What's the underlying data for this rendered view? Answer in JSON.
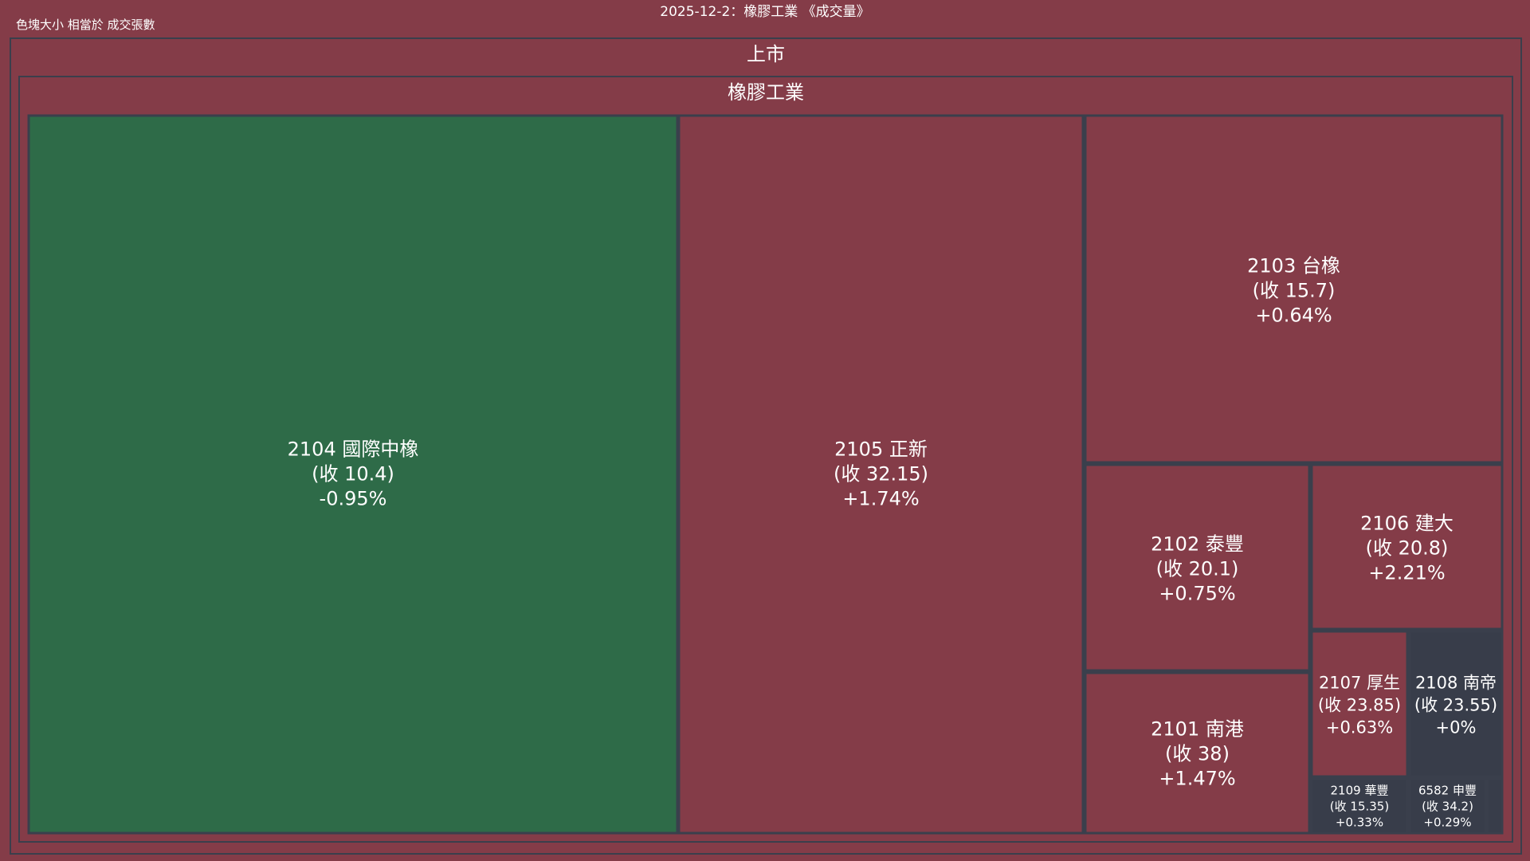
{
  "title": "2025-12-2：橡膠工業 《成交量》",
  "size_note": "色塊大小 相當於 成交張數",
  "market_label": "上市",
  "sector_label": "橡膠工業",
  "colors": {
    "background": "#843c48",
    "border": "#3a3f4c",
    "up": "#843c48",
    "down": "#2e6b48",
    "flat": "#383d4a"
  },
  "chart_data": {
    "type": "treemap",
    "title": "2025-12-2：橡膠工業 《成交量》",
    "size_measure": "成交張數",
    "hierarchy": [
      "上市",
      "橡膠工業"
    ],
    "tiles": [
      {
        "code": "2104",
        "name": "國際中橡",
        "label": "2104 國際中橡",
        "close": "(收 10.4)",
        "change": "-0.95%",
        "change_value": -0.95,
        "color": "#2e6b48"
      },
      {
        "code": "2105",
        "name": "正新",
        "label": "2105 正新",
        "close": "(收 32.15)",
        "change": "+1.74%",
        "change_value": 1.74,
        "color": "#843c48"
      },
      {
        "code": "2103",
        "name": "台橡",
        "label": "2103 台橡",
        "close": "(收 15.7)",
        "change": "+0.64%",
        "change_value": 0.64,
        "color": "#843c48"
      },
      {
        "code": "2102",
        "name": "泰豐",
        "label": "2102 泰豐",
        "close": "(收 20.1)",
        "change": "+0.75%",
        "change_value": 0.75,
        "color": "#843c48"
      },
      {
        "code": "2106",
        "name": "建大",
        "label": "2106 建大",
        "close": "(收 20.8)",
        "change": "+2.21%",
        "change_value": 2.21,
        "color": "#843c48"
      },
      {
        "code": "2101",
        "name": "南港",
        "label": "2101 南港",
        "close": "(收 38)",
        "change": "+1.47%",
        "change_value": 1.47,
        "color": "#843c48"
      },
      {
        "code": "2107",
        "name": "厚生",
        "label": "2107 厚生",
        "close": "(收 23.85)",
        "change": "+0.63%",
        "change_value": 0.63,
        "color": "#843c48"
      },
      {
        "code": "2108",
        "name": "南帝",
        "label": "2108 南帝",
        "close": "(收 23.55)",
        "change": "+0%",
        "change_value": 0,
        "color": "#383d4a"
      },
      {
        "code": "2109",
        "name": "華豐",
        "label": "2109 華豐",
        "close": "(收 15.35)",
        "change": "+0.33%",
        "change_value": 0.33,
        "color": "#383d4a"
      },
      {
        "code": "6582",
        "name": "申豐",
        "label": "6582 申豐",
        "close": "(收 34.2)",
        "change": "+0.29%",
        "change_value": 0.29,
        "color": "#383d4a"
      },
      {
        "code": "",
        "name": "",
        "label": "",
        "close": "",
        "change": "",
        "change_value": null,
        "color": "#383d4a"
      }
    ]
  }
}
